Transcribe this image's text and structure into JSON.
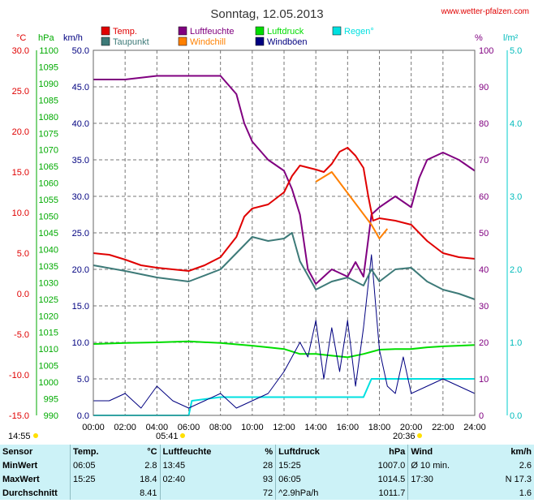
{
  "title": "Sonntag, 12.05.2013",
  "site": "www.wetter-pfalzen.com",
  "legend": [
    {
      "label": "Temp.",
      "color": "#e00000"
    },
    {
      "label": "Taupunkt",
      "color": "#3d7a78"
    },
    {
      "label": "Luftfeuchte",
      "color": "#800080"
    },
    {
      "label": "Windchill",
      "color": "#ff8000"
    },
    {
      "label": "Luftdruck",
      "color": "#00dd00"
    },
    {
      "label": "Windböen",
      "color": "#000080"
    },
    {
      "label": "Regen°",
      "color": "#00e0e0"
    }
  ],
  "axis_units": {
    "temp": "°C",
    "pressure": "hPa",
    "wind": "km/h",
    "humidity": "%",
    "rain": "l/m²"
  },
  "axes": {
    "temp_ticks": [
      "30.0",
      "25.0",
      "20.0",
      "15.0",
      "10.0",
      "5.0",
      "0.0",
      "-5.0",
      "-10.0",
      "-15.0"
    ],
    "pressure_ticks": [
      "1100",
      "1095",
      "1090",
      "1085",
      "1080",
      "1075",
      "1070",
      "1065",
      "1060",
      "1055",
      "1050",
      "1045",
      "1040",
      "1035",
      "1030",
      "1025",
      "1020",
      "1015",
      "1010",
      "1005",
      "1000",
      "995",
      "990"
    ],
    "wind_ticks": [
      "50.0",
      "45.0",
      "40.0",
      "35.0",
      "30.0",
      "25.0",
      "20.0",
      "15.0",
      "10.0",
      "5.0",
      "0.0"
    ],
    "humidity_ticks": [
      "100",
      "90",
      "80",
      "70",
      "60",
      "50",
      "40",
      "30",
      "20",
      "10",
      "0"
    ],
    "rain_ticks": [
      "5.0",
      "4.0",
      "3.0",
      "2.0",
      "1.0",
      "0.0"
    ],
    "x_ticks": [
      "00:00",
      "02:00",
      "04:00",
      "06:00",
      "08:00",
      "10:00",
      "12:00",
      "14:00",
      "16:00",
      "18:00",
      "20:00",
      "22:00",
      "24:00"
    ]
  },
  "sun": {
    "rise_label": "05:41",
    "set_label": "20:36",
    "day_start_label": "14:55"
  },
  "chart_data": {
    "type": "line",
    "x_unit": "hours",
    "xlim": [
      0,
      24
    ],
    "series": [
      {
        "name": "Temp.",
        "axis": "temp",
        "color": "#e00000",
        "points": [
          [
            0,
            5.0
          ],
          [
            1,
            4.8
          ],
          [
            2,
            4.2
          ],
          [
            3,
            3.5
          ],
          [
            4,
            3.2
          ],
          [
            5,
            3.0
          ],
          [
            6,
            2.8
          ],
          [
            7,
            3.5
          ],
          [
            8,
            4.5
          ],
          [
            9,
            7.0
          ],
          [
            9.5,
            9.5
          ],
          [
            10,
            10.5
          ],
          [
            11,
            11.0
          ],
          [
            12,
            12.5
          ],
          [
            12.5,
            14.5
          ],
          [
            13,
            15.8
          ],
          [
            14,
            15.3
          ],
          [
            14.5,
            15.0
          ],
          [
            15,
            16.0
          ],
          [
            15.5,
            17.5
          ],
          [
            16,
            18.0
          ],
          [
            16.5,
            17.0
          ],
          [
            17,
            15.5
          ],
          [
            17.3,
            12.0
          ],
          [
            17.6,
            9.0
          ],
          [
            18,
            9.3
          ],
          [
            19,
            9.0
          ],
          [
            20,
            8.5
          ],
          [
            21,
            6.5
          ],
          [
            22,
            5.0
          ],
          [
            23,
            4.5
          ],
          [
            24,
            4.3
          ]
        ]
      },
      {
        "name": "Taupunkt",
        "axis": "temp",
        "color": "#3d7a78",
        "points": [
          [
            0,
            3.5
          ],
          [
            2,
            2.8
          ],
          [
            4,
            2.0
          ],
          [
            6,
            1.5
          ],
          [
            8,
            3.0
          ],
          [
            9,
            5.0
          ],
          [
            10,
            7.0
          ],
          [
            11,
            6.5
          ],
          [
            12,
            6.8
          ],
          [
            12.5,
            7.5
          ],
          [
            13,
            4.0
          ],
          [
            14,
            0.5
          ],
          [
            15,
            1.5
          ],
          [
            16,
            2.0
          ],
          [
            17,
            1.0
          ],
          [
            17.5,
            3.0
          ],
          [
            18,
            1.5
          ],
          [
            19,
            3.0
          ],
          [
            20,
            3.2
          ],
          [
            21,
            1.5
          ],
          [
            22,
            0.5
          ],
          [
            23,
            0.0
          ],
          [
            24,
            -0.7
          ]
        ]
      },
      {
        "name": "Luftfeuchte",
        "axis": "humidity",
        "color": "#800080",
        "points": [
          [
            0,
            92
          ],
          [
            2,
            92
          ],
          [
            4,
            93
          ],
          [
            6,
            93
          ],
          [
            8,
            93
          ],
          [
            9,
            88
          ],
          [
            9.5,
            80
          ],
          [
            10,
            75
          ],
          [
            11,
            70
          ],
          [
            12,
            67
          ],
          [
            12.5,
            62
          ],
          [
            13,
            55
          ],
          [
            13.5,
            40
          ],
          [
            14,
            36
          ],
          [
            15,
            40
          ],
          [
            16,
            38
          ],
          [
            16.5,
            42
          ],
          [
            17,
            38
          ],
          [
            17.5,
            55
          ],
          [
            18,
            57
          ],
          [
            19,
            60
          ],
          [
            20,
            57
          ],
          [
            20.5,
            65
          ],
          [
            21,
            70
          ],
          [
            22,
            72
          ],
          [
            23,
            70
          ],
          [
            24,
            67
          ]
        ]
      },
      {
        "name": "Windchill",
        "axis": "temp",
        "color": "#ff8000",
        "points": [
          [
            14,
            13.8
          ],
          [
            15,
            15.0
          ],
          [
            17.5,
            8.5
          ],
          [
            18,
            6.8
          ],
          [
            18.5,
            8.0
          ]
        ]
      },
      {
        "name": "Luftdruck",
        "axis": "pressure",
        "color": "#00dd00",
        "points": [
          [
            0,
            1011.5
          ],
          [
            2,
            1011.8
          ],
          [
            4,
            1012.0
          ],
          [
            6,
            1012.3
          ],
          [
            8,
            1011.8
          ],
          [
            10,
            1011.0
          ],
          [
            11,
            1010.5
          ],
          [
            12,
            1010.0
          ],
          [
            13,
            1008.5
          ],
          [
            14,
            1008.5
          ],
          [
            15,
            1008.0
          ],
          [
            16,
            1007.5
          ],
          [
            17,
            1008.5
          ],
          [
            18,
            1009.8
          ],
          [
            19,
            1010.0
          ],
          [
            20,
            1010.0
          ],
          [
            21,
            1010.5
          ],
          [
            22,
            1010.8
          ],
          [
            23,
            1011.0
          ],
          [
            24,
            1011.2
          ]
        ]
      },
      {
        "name": "Windböen",
        "axis": "wind",
        "color": "#000080",
        "points": [
          [
            0,
            2
          ],
          [
            1,
            2
          ],
          [
            2,
            3
          ],
          [
            3,
            1
          ],
          [
            4,
            4
          ],
          [
            5,
            2
          ],
          [
            6,
            1
          ],
          [
            7,
            2
          ],
          [
            8,
            3
          ],
          [
            9,
            1
          ],
          [
            10,
            2
          ],
          [
            11,
            3
          ],
          [
            12,
            6
          ],
          [
            13,
            10
          ],
          [
            13.5,
            8
          ],
          [
            14,
            13
          ],
          [
            14.5,
            5
          ],
          [
            15,
            12
          ],
          [
            15.5,
            6
          ],
          [
            16,
            13
          ],
          [
            16.5,
            4
          ],
          [
            17,
            12
          ],
          [
            17.5,
            22
          ],
          [
            18,
            9
          ],
          [
            18.5,
            4
          ],
          [
            19,
            3
          ],
          [
            19.5,
            8
          ],
          [
            20,
            3
          ],
          [
            21,
            4
          ],
          [
            22,
            5
          ],
          [
            23,
            4
          ],
          [
            24,
            3
          ]
        ]
      },
      {
        "name": "Regen°",
        "axis": "rain",
        "color": "#00e0e0",
        "points": [
          [
            0,
            0
          ],
          [
            6,
            0
          ],
          [
            6.2,
            0.2
          ],
          [
            8,
            0.25
          ],
          [
            12,
            0.25
          ],
          [
            17,
            0.25
          ],
          [
            17.5,
            0.5
          ],
          [
            24,
            0.5
          ]
        ]
      }
    ]
  },
  "summary": {
    "headers": {
      "sensor": "Sensor",
      "temp": "Temp.",
      "temp_unit": "°C",
      "hum": "Luftfeuchte",
      "hum_unit": "%",
      "press": "Luftdruck",
      "press_unit": "hPa",
      "wind": "Wind",
      "wind_unit": "km/h"
    },
    "rows": [
      {
        "label": "MinWert",
        "t_time": "06:05",
        "t_val": "2.8",
        "h_time": "13:45",
        "h_val": "28",
        "p_time": "15:25",
        "p_val": "1007.0",
        "w_time": "Ø 10 min.",
        "w_val": "2.6"
      },
      {
        "label": "MaxWert",
        "t_time": "15:25",
        "t_val": "18.4",
        "h_time": "02:40",
        "h_val": "93",
        "p_time": "06:05",
        "p_val": "1014.5",
        "w_time": "17:30",
        "w_val": "N 17.3"
      },
      {
        "label": "Durchschnitt",
        "t_time": "",
        "t_val": "8.41",
        "h_time": "",
        "h_val": "72",
        "p_time": "^2.9hPa/h",
        "p_val": "1011.7",
        "w_time": "",
        "w_val": "1.6"
      }
    ]
  }
}
